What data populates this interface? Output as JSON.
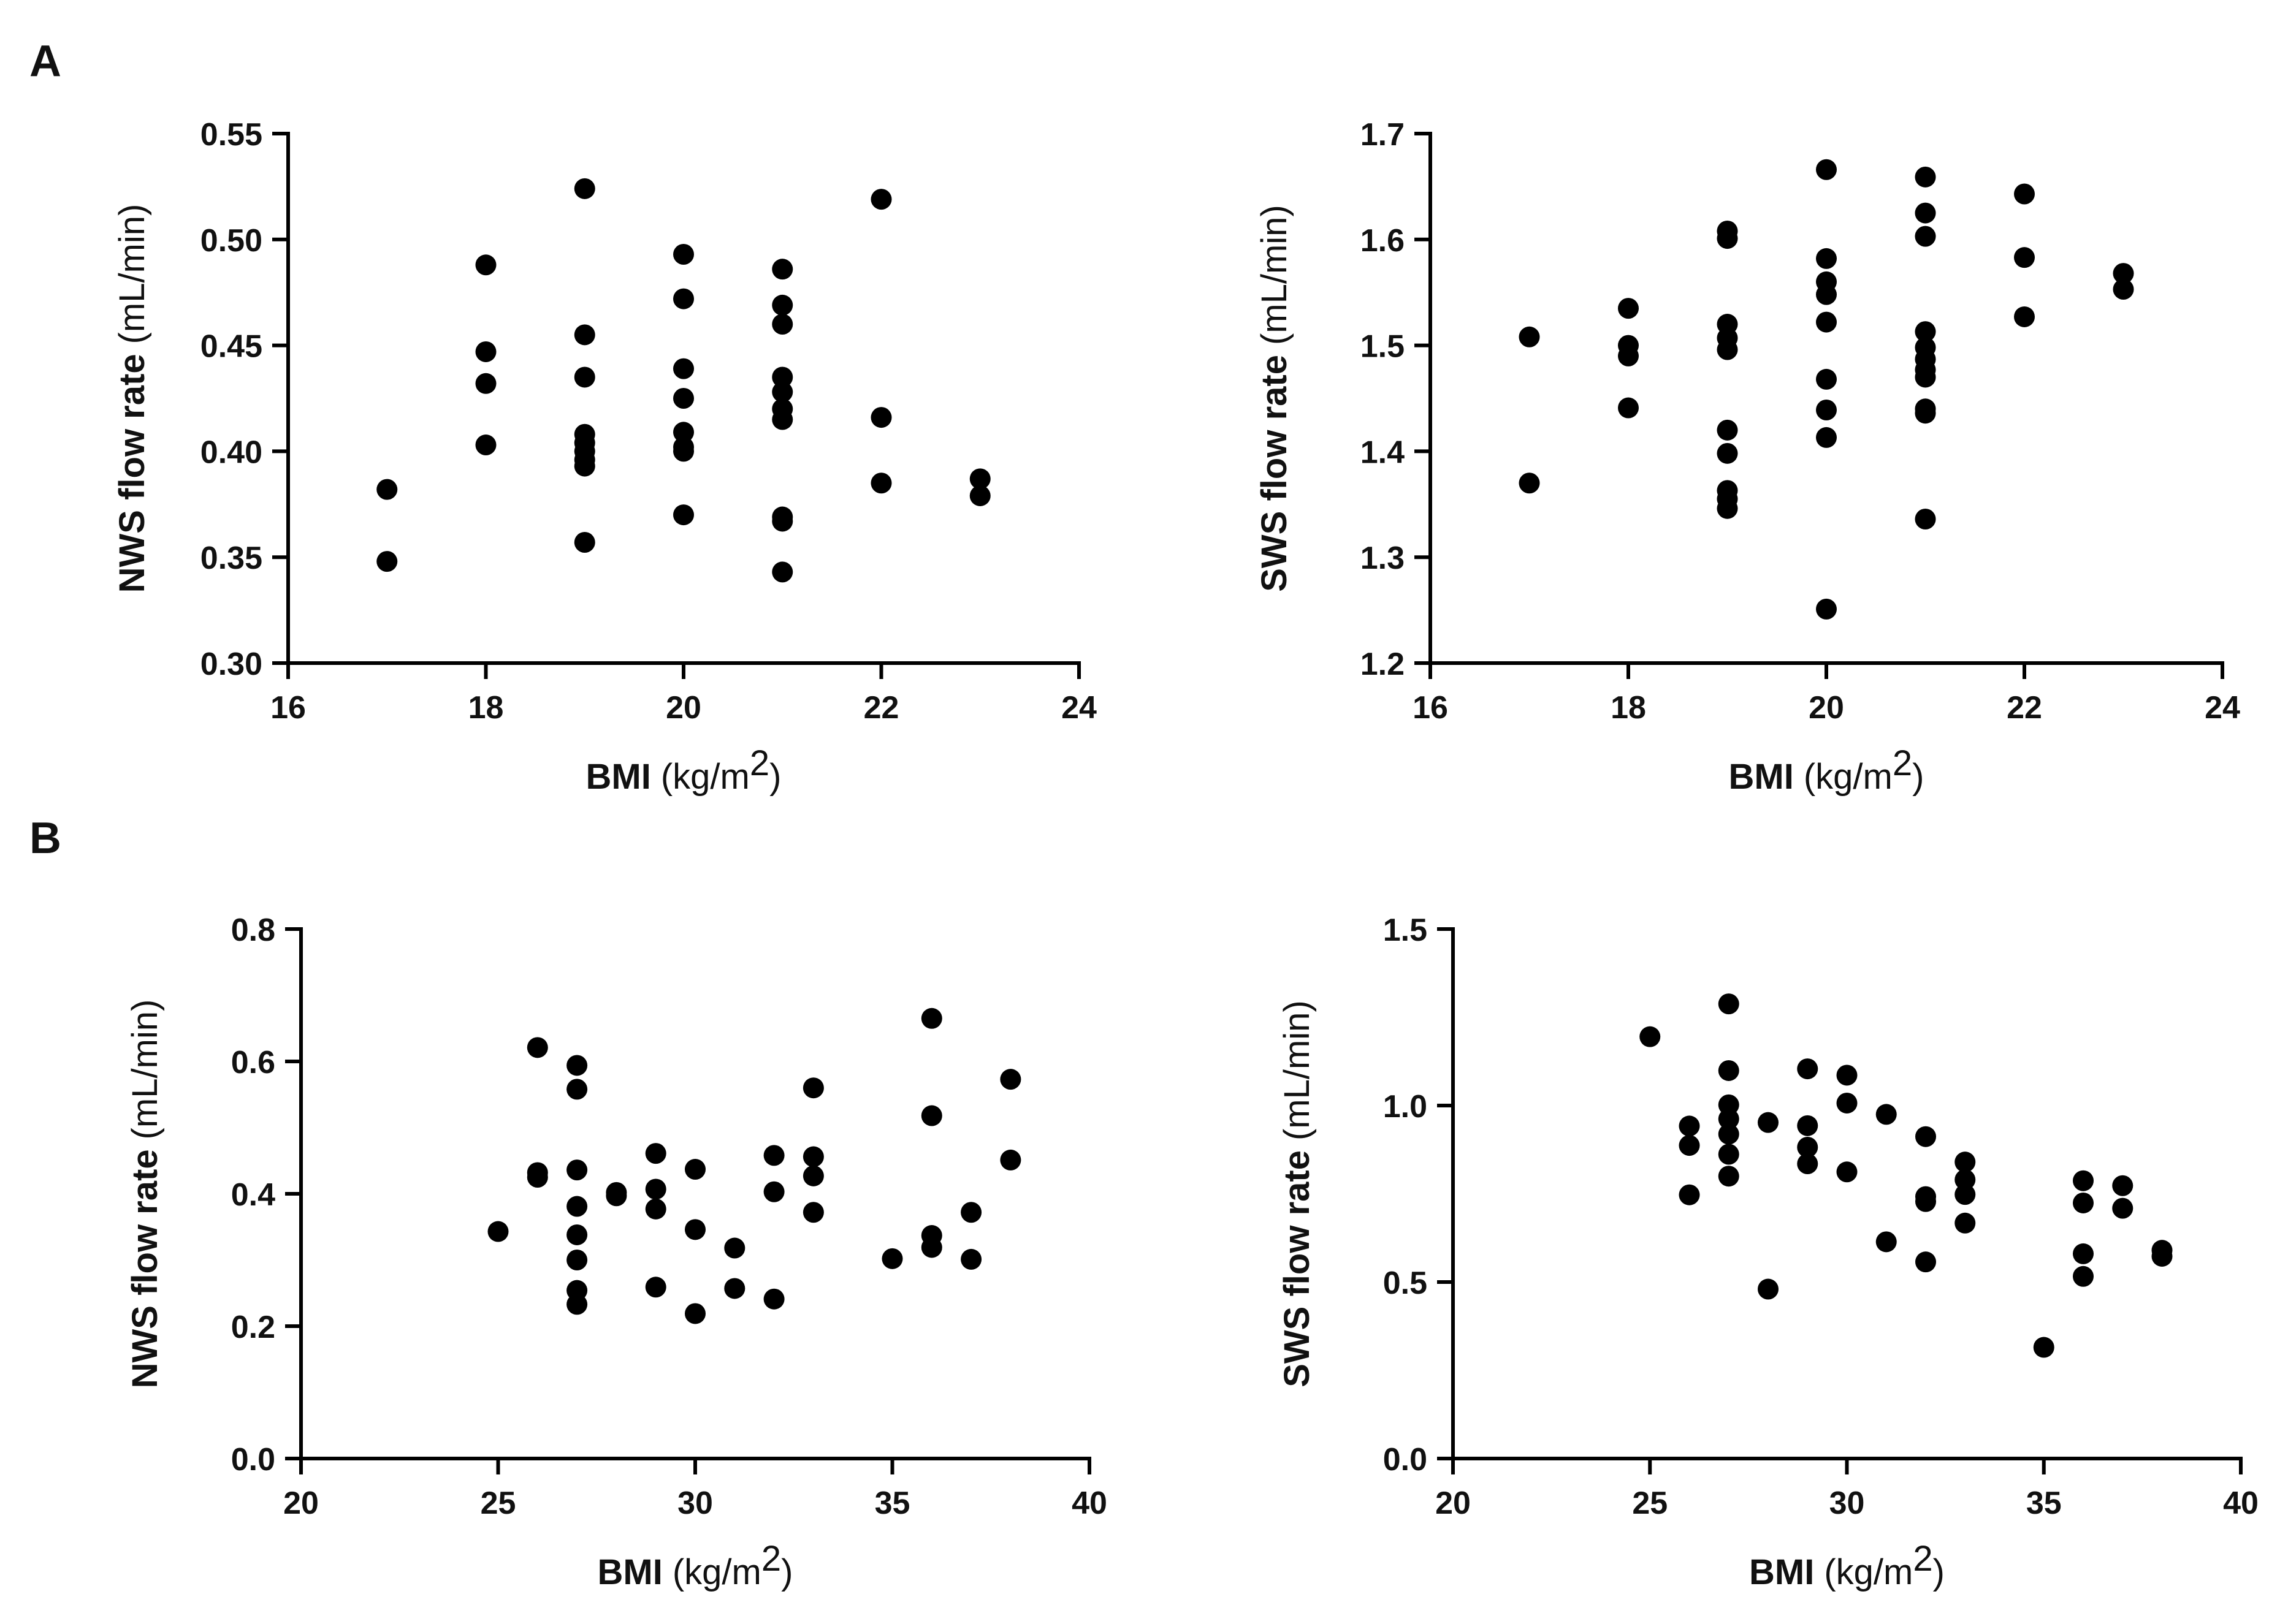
{
  "figure": {
    "panel_a_label": "A",
    "panel_b_label": "B"
  },
  "chart_data": [
    {
      "id": "a-nws",
      "type": "scatter",
      "title": "",
      "xlabel_bold": "BMI",
      "xlabel_unit_base": "(kg/m",
      "xlabel_unit_sup": "2",
      "xlabel_unit_close": ")",
      "ylabel_bold": "NWS flow rate",
      "ylabel_unit": "(mL/min)",
      "xlim": [
        16,
        24
      ],
      "ylim": [
        0.3,
        0.55
      ],
      "xticks": [
        16,
        18,
        20,
        22,
        24
      ],
      "xtick_labels": [
        "16",
        "18",
        "20",
        "22",
        "24"
      ],
      "yticks": [
        0.3,
        0.35,
        0.4,
        0.45,
        0.5,
        0.55
      ],
      "ytick_labels": [
        "0.30",
        "0.35",
        "0.40",
        "0.45",
        "0.50",
        "0.55"
      ],
      "points": [
        [
          17,
          0.382
        ],
        [
          17,
          0.348
        ],
        [
          18,
          0.488
        ],
        [
          18,
          0.447
        ],
        [
          18,
          0.432
        ],
        [
          18,
          0.403
        ],
        [
          19,
          0.524
        ],
        [
          19,
          0.455
        ],
        [
          19,
          0.435
        ],
        [
          19,
          0.408
        ],
        [
          19,
          0.404
        ],
        [
          19,
          0.4
        ],
        [
          19,
          0.396
        ],
        [
          19,
          0.393
        ],
        [
          19,
          0.357
        ],
        [
          20,
          0.493
        ],
        [
          20,
          0.472
        ],
        [
          20,
          0.439
        ],
        [
          20,
          0.425
        ],
        [
          20,
          0.409
        ],
        [
          20,
          0.402
        ],
        [
          20,
          0.4
        ],
        [
          20,
          0.37
        ],
        [
          21,
          0.486
        ],
        [
          21,
          0.469
        ],
        [
          21,
          0.46
        ],
        [
          21,
          0.435
        ],
        [
          21,
          0.428
        ],
        [
          21,
          0.42
        ],
        [
          21,
          0.415
        ],
        [
          21,
          0.369
        ],
        [
          21,
          0.367
        ],
        [
          21,
          0.343
        ],
        [
          22,
          0.519
        ],
        [
          22,
          0.416
        ],
        [
          22,
          0.385
        ],
        [
          23,
          0.387
        ],
        [
          23,
          0.379
        ]
      ]
    },
    {
      "id": "a-sws",
      "type": "scatter",
      "title": "",
      "xlabel_bold": "BMI",
      "xlabel_unit_base": "(kg/m",
      "xlabel_unit_sup": "2",
      "xlabel_unit_close": ")",
      "ylabel_bold": "SWS flow rate",
      "ylabel_unit": "(mL/min)",
      "xlim": [
        16,
        24
      ],
      "ylim": [
        1.2,
        1.7
      ],
      "xticks": [
        16,
        18,
        20,
        22,
        24
      ],
      "xtick_labels": [
        "16",
        "18",
        "20",
        "22",
        "24"
      ],
      "yticks": [
        1.2,
        1.3,
        1.4,
        1.5,
        1.6,
        1.7
      ],
      "ytick_labels": [
        "1.2",
        "1.3",
        "1.4",
        "1.5",
        "1.6",
        "1.7"
      ],
      "points": [
        [
          17,
          1.508
        ],
        [
          17,
          1.37
        ],
        [
          18,
          1.535
        ],
        [
          18,
          1.5
        ],
        [
          18,
          1.49
        ],
        [
          18,
          1.441
        ],
        [
          19,
          1.608
        ],
        [
          19,
          1.601
        ],
        [
          19,
          1.52
        ],
        [
          19,
          1.507
        ],
        [
          19,
          1.496
        ],
        [
          19,
          1.42
        ],
        [
          19,
          1.398
        ],
        [
          19,
          1.363
        ],
        [
          19,
          1.355
        ],
        [
          19,
          1.346
        ],
        [
          20,
          1.666
        ],
        [
          20,
          1.582
        ],
        [
          20,
          1.56
        ],
        [
          20,
          1.548
        ],
        [
          20,
          1.522
        ],
        [
          20,
          1.468
        ],
        [
          20,
          1.439
        ],
        [
          20,
          1.413
        ],
        [
          20,
          1.251
        ],
        [
          21,
          1.659
        ],
        [
          21,
          1.625
        ],
        [
          21,
          1.603
        ],
        [
          21,
          1.513
        ],
        [
          21,
          1.498
        ],
        [
          21,
          1.487
        ],
        [
          21,
          1.477
        ],
        [
          21,
          1.47
        ],
        [
          21,
          1.44
        ],
        [
          21,
          1.436
        ],
        [
          21,
          1.336
        ],
        [
          22,
          1.643
        ],
        [
          22,
          1.583
        ],
        [
          22,
          1.527
        ],
        [
          23,
          1.568
        ],
        [
          23,
          1.553
        ]
      ]
    },
    {
      "id": "b-nws",
      "type": "scatter",
      "title": "",
      "xlabel_bold": "BMI",
      "xlabel_unit_base": "(kg/m",
      "xlabel_unit_sup": "2",
      "xlabel_unit_close": ")",
      "ylabel_bold": "NWS flow rate",
      "ylabel_unit": "(mL/min)",
      "xlim": [
        20,
        40
      ],
      "ylim": [
        0.0,
        0.8
      ],
      "xticks": [
        20,
        25,
        30,
        35,
        40
      ],
      "xtick_labels": [
        "20",
        "25",
        "30",
        "35",
        "40"
      ],
      "yticks": [
        0.0,
        0.2,
        0.4,
        0.6,
        0.8
      ],
      "ytick_labels": [
        "0.0",
        "0.2",
        "0.4",
        "0.6",
        "0.8"
      ],
      "points": [
        [
          25,
          0.343
        ],
        [
          26,
          0.621
        ],
        [
          26,
          0.432
        ],
        [
          26,
          0.425
        ],
        [
          27,
          0.594
        ],
        [
          27,
          0.558
        ],
        [
          27,
          0.436
        ],
        [
          27,
          0.381
        ],
        [
          27,
          0.338
        ],
        [
          27,
          0.3
        ],
        [
          27,
          0.254
        ],
        [
          27,
          0.233
        ],
        [
          28,
          0.402
        ],
        [
          28,
          0.397
        ],
        [
          29,
          0.461
        ],
        [
          29,
          0.407
        ],
        [
          29,
          0.377
        ],
        [
          29,
          0.259
        ],
        [
          30,
          0.437
        ],
        [
          30,
          0.346
        ],
        [
          30,
          0.219
        ],
        [
          31,
          0.318
        ],
        [
          31,
          0.257
        ],
        [
          32,
          0.458
        ],
        [
          32,
          0.403
        ],
        [
          32,
          0.241
        ],
        [
          33,
          0.56
        ],
        [
          33,
          0.456
        ],
        [
          33,
          0.427
        ],
        [
          33,
          0.372
        ],
        [
          35,
          0.302
        ],
        [
          36,
          0.665
        ],
        [
          36,
          0.518
        ],
        [
          36,
          0.337
        ],
        [
          36,
          0.319
        ],
        [
          37,
          0.372
        ],
        [
          37,
          0.301
        ],
        [
          38,
          0.573
        ],
        [
          38,
          0.451
        ]
      ]
    },
    {
      "id": "b-sws",
      "type": "scatter",
      "title": "",
      "xlabel_bold": "BMI",
      "xlabel_unit_base": "(kg/m",
      "xlabel_unit_sup": "2",
      "xlabel_unit_close": ")",
      "ylabel_bold": "SWS flow rate",
      "ylabel_unit": "(mL/min)",
      "xlim": [
        20,
        40
      ],
      "ylim": [
        0.0,
        1.5
      ],
      "xticks": [
        20,
        25,
        30,
        35,
        40
      ],
      "xtick_labels": [
        "20",
        "25",
        "30",
        "35",
        "40"
      ],
      "yticks": [
        0.0,
        0.5,
        1.0,
        1.5
      ],
      "ytick_labels": [
        "0.0",
        "0.5",
        "1.0",
        "1.5"
      ],
      "points": [
        [
          25,
          1.195
        ],
        [
          26,
          0.942
        ],
        [
          26,
          0.887
        ],
        [
          26,
          0.747
        ],
        [
          27,
          1.288
        ],
        [
          27,
          1.099
        ],
        [
          27,
          1.002
        ],
        [
          27,
          0.962
        ],
        [
          27,
          0.919
        ],
        [
          27,
          0.862
        ],
        [
          27,
          0.8
        ],
        [
          28,
          0.952
        ],
        [
          28,
          0.48
        ],
        [
          29,
          1.104
        ],
        [
          29,
          0.943
        ],
        [
          29,
          0.882
        ],
        [
          29,
          0.835
        ],
        [
          30,
          1.086
        ],
        [
          30,
          1.007
        ],
        [
          30,
          0.812
        ],
        [
          31,
          0.975
        ],
        [
          31,
          0.614
        ],
        [
          32,
          0.912
        ],
        [
          32,
          0.742
        ],
        [
          32,
          0.728
        ],
        [
          32,
          0.557
        ],
        [
          33,
          0.84
        ],
        [
          33,
          0.79
        ],
        [
          33,
          0.748
        ],
        [
          33,
          0.667
        ],
        [
          35,
          0.315
        ],
        [
          36,
          0.787
        ],
        [
          36,
          0.724
        ],
        [
          36,
          0.58
        ],
        [
          36,
          0.516
        ],
        [
          37,
          0.773
        ],
        [
          37,
          0.709
        ],
        [
          38,
          0.59
        ],
        [
          38,
          0.573
        ]
      ]
    }
  ]
}
